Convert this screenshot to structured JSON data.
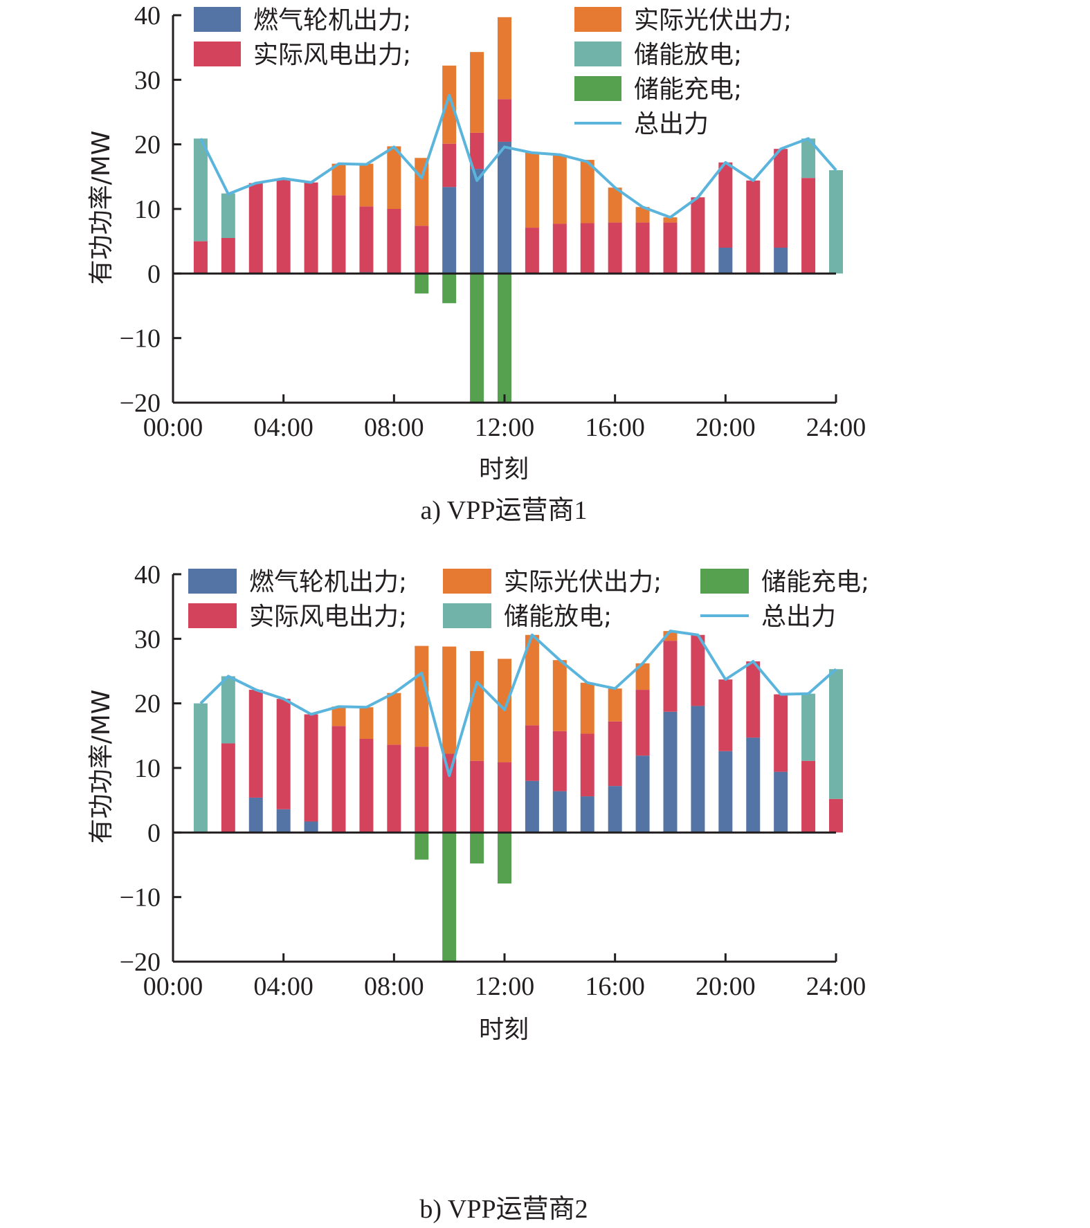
{
  "colors": {
    "gas": "#5374a5",
    "wind": "#d4435c",
    "pv": "#e67a32",
    "discharge": "#71b3a8",
    "charge": "#55a14f",
    "total": "#5ab4dc",
    "axis": "#231f20"
  },
  "chart_data": [
    {
      "type": "bar",
      "stacked": true,
      "caption": "a) VPP运营商1",
      "xlabel": "时刻",
      "ylabel": "有功功率/MW",
      "ylim": [
        -20,
        40
      ],
      "yticks": [
        -20,
        -10,
        0,
        10,
        20,
        30,
        40
      ],
      "ytick_labels": [
        "−20",
        "−10",
        "0",
        "10",
        "20",
        "30",
        "40"
      ],
      "xlim": [
        0,
        24
      ],
      "xticks": [
        0,
        4,
        8,
        12,
        16,
        20,
        24
      ],
      "xtick_labels": [
        "00:00",
        "04:00",
        "08:00",
        "12:00",
        "16:00",
        "20:00",
        "24:00"
      ],
      "legend_position": "top",
      "legend": [
        {
          "key": "gas",
          "label": "燃气轮机出力;",
          "kind": "box"
        },
        {
          "key": "pv",
          "label": "实际光伏出力;",
          "kind": "box"
        },
        {
          "key": "wind",
          "label": "实际风电出力;",
          "kind": "box"
        },
        {
          "key": "discharge",
          "label": "储能放电;",
          "kind": "box"
        },
        {
          "key": "charge",
          "label": "储能充电;",
          "kind": "box"
        },
        {
          "key": "total",
          "label": "总出力",
          "kind": "line"
        }
      ],
      "x": [
        1,
        2,
        3,
        4,
        5,
        6,
        7,
        8,
        9,
        10,
        11,
        12,
        13,
        14,
        15,
        16,
        17,
        18,
        19,
        20,
        21,
        22,
        23,
        24
      ],
      "series": [
        {
          "key": "gas",
          "name": "燃气轮机出力",
          "values": [
            0,
            0,
            0,
            0,
            0,
            0,
            0.2,
            0,
            0,
            13.4,
            16.2,
            20.4,
            0,
            0,
            0,
            0,
            0,
            0,
            0,
            4,
            0,
            4,
            0,
            0
          ]
        },
        {
          "key": "wind",
          "name": "实际风电出力",
          "values": [
            5,
            5.5,
            14,
            14.7,
            14.1,
            12.1,
            10.2,
            10,
            7.4,
            6.7,
            5.6,
            6.6,
            7.1,
            7.7,
            7.8,
            7.9,
            7.9,
            7.9,
            11.8,
            13.2,
            14.4,
            15.3,
            14.8,
            0
          ]
        },
        {
          "key": "pv",
          "name": "实际光伏出力",
          "values": [
            0,
            0,
            0,
            0,
            0,
            4.9,
            6.6,
            9.7,
            10.5,
            12.1,
            12.5,
            12.7,
            11.6,
            10.6,
            9.8,
            5.4,
            2.4,
            0.8,
            0,
            0,
            0,
            0,
            0,
            0
          ]
        },
        {
          "key": "discharge",
          "name": "储能放电",
          "values": [
            15.9,
            6.9,
            0,
            0,
            0,
            0,
            0,
            0,
            0,
            0,
            0,
            0,
            0,
            0,
            0,
            0,
            0,
            0,
            0,
            0,
            0,
            0,
            6.1,
            16
          ]
        },
        {
          "key": "charge",
          "name": "储能充电",
          "values": [
            0,
            0,
            0,
            0,
            0,
            0,
            0,
            0,
            -3.1,
            -4.6,
            -20,
            -20,
            0,
            0,
            0,
            0,
            0,
            0,
            0,
            0,
            0,
            0,
            0,
            0
          ]
        },
        {
          "key": "total",
          "name": "总出力",
          "type": "line",
          "values": [
            20.9,
            12.3,
            14,
            14.7,
            14.1,
            17,
            16.9,
            19.6,
            14.8,
            27.6,
            14.4,
            19.6,
            18.7,
            18.4,
            17.3,
            13.3,
            10.3,
            8.7,
            11.8,
            17.2,
            14.4,
            19.3,
            20.9,
            16
          ]
        }
      ]
    },
    {
      "type": "bar",
      "stacked": true,
      "caption": "b) VPP运营商2",
      "xlabel": "时刻",
      "ylabel": "有功功率/MW",
      "ylim": [
        -20,
        40
      ],
      "yticks": [
        -20,
        -10,
        0,
        10,
        20,
        30,
        40
      ],
      "ytick_labels": [
        "−20",
        "−10",
        "0",
        "10",
        "20",
        "30",
        "40"
      ],
      "xlim": [
        0,
        24
      ],
      "xticks": [
        0,
        4,
        8,
        12,
        16,
        20,
        24
      ],
      "xtick_labels": [
        "00:00",
        "04:00",
        "08:00",
        "12:00",
        "16:00",
        "20:00",
        "24:00"
      ],
      "legend_position": "top",
      "legend": [
        {
          "key": "gas",
          "label": "燃气轮机出力;",
          "kind": "box"
        },
        {
          "key": "pv",
          "label": "实际光伏出力;",
          "kind": "box"
        },
        {
          "key": "charge",
          "label": "储能充电;",
          "kind": "box"
        },
        {
          "key": "wind",
          "label": "实际风电出力;",
          "kind": "box"
        },
        {
          "key": "discharge",
          "label": "储能放电;",
          "kind": "box"
        },
        {
          "key": "total",
          "label": "总出力",
          "kind": "line"
        }
      ],
      "x": [
        1,
        2,
        3,
        4,
        5,
        6,
        7,
        8,
        9,
        10,
        11,
        12,
        13,
        14,
        15,
        16,
        17,
        18,
        19,
        20,
        21,
        22,
        23,
        24
      ],
      "series": [
        {
          "key": "gas",
          "name": "燃气轮机出力",
          "values": [
            0,
            0,
            5.4,
            3.6,
            1.7,
            0,
            0,
            0,
            0,
            0,
            0,
            0,
            8,
            6.4,
            5.6,
            7.2,
            11.9,
            18.7,
            19.6,
            12.6,
            14.7,
            9.4,
            0,
            0
          ]
        },
        {
          "key": "wind",
          "name": "实际风电出力",
          "values": [
            0,
            13.8,
            16.7,
            17.1,
            16.6,
            16.5,
            14.5,
            13.6,
            13.3,
            12.2,
            11.1,
            10.9,
            8.6,
            9.3,
            9.7,
            10,
            10.2,
            11,
            11,
            11.1,
            11.8,
            12,
            11.1,
            5.2
          ]
        },
        {
          "key": "pv",
          "name": "实际光伏出力",
          "values": [
            0,
            0,
            0,
            0,
            0,
            3,
            4.9,
            8,
            15.6,
            16.6,
            17,
            16,
            14,
            11,
            7.9,
            5.1,
            4.1,
            1.5,
            0,
            0,
            0,
            0,
            0,
            0
          ]
        },
        {
          "key": "discharge",
          "name": "储能放电",
          "values": [
            20,
            10.4,
            0,
            0,
            0,
            0,
            0,
            0,
            0,
            0,
            0,
            0,
            0,
            0,
            0,
            0,
            0,
            0,
            0,
            0,
            0,
            0,
            10.4,
            20.1
          ]
        },
        {
          "key": "charge",
          "name": "储能充电",
          "values": [
            0,
            0,
            0,
            0,
            0,
            0,
            0,
            0,
            -4.2,
            -20,
            -4.8,
            -7.9,
            0,
            0,
            0,
            0,
            0,
            0,
            0,
            0,
            0,
            0,
            0,
            0
          ]
        },
        {
          "key": "total",
          "name": "总出力",
          "type": "line",
          "values": [
            20,
            24.2,
            22.1,
            20.7,
            18.3,
            19.5,
            19.4,
            21.6,
            24.7,
            8.8,
            23.3,
            19,
            30.6,
            26.7,
            23.2,
            22.3,
            26.2,
            31.2,
            30.6,
            23.7,
            26.5,
            21.4,
            21.5,
            25.3
          ]
        }
      ]
    }
  ]
}
